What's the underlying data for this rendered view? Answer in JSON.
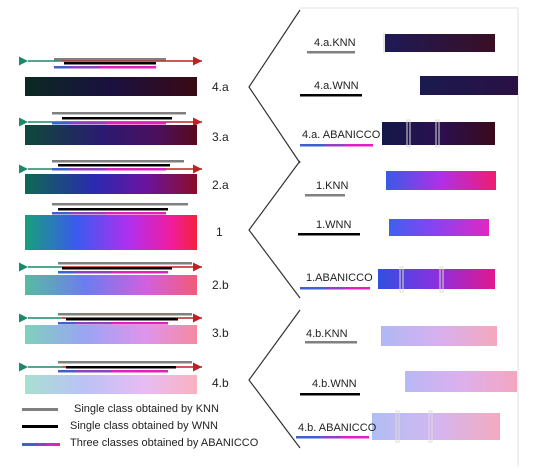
{
  "rows": [
    {
      "label": "4.a"
    },
    {
      "label": "3.a"
    },
    {
      "label": "2.a"
    },
    {
      "label": "1"
    },
    {
      "label": "2.b"
    },
    {
      "label": "3.b"
    },
    {
      "label": "4.b"
    }
  ],
  "panels": [
    {
      "items": [
        {
          "label": "4.a.KNN"
        },
        {
          "label": "4.a.WNN"
        },
        {
          "label": "4.a. ABANICCO"
        }
      ]
    },
    {
      "items": [
        {
          "label": "1.KNN"
        },
        {
          "label": "1.WNN"
        },
        {
          "label": "1.ABANICCO"
        }
      ]
    },
    {
      "items": [
        {
          "label": "4.b.KNN"
        },
        {
          "label": "4.b.WNN"
        },
        {
          "label": "4.b. ABANICCO"
        }
      ]
    }
  ],
  "legend": [
    {
      "text": "Single class obtained by KNN",
      "color": "#808080"
    },
    {
      "text": "Single class obtained by WNN",
      "color": "#000000"
    },
    {
      "text": "Three classes obtained by ABANICCO",
      "color": "#c030c0"
    }
  ],
  "colors": {
    "arrow_left": "#1a8a6a",
    "arrow_right": "#c02020",
    "knn_line": "#808080",
    "wnn_line": "#000000",
    "abanicco_blue": "#4060d0",
    "abanicco_purple": "#9040c0",
    "abanicco_magenta": "#e020c0"
  }
}
